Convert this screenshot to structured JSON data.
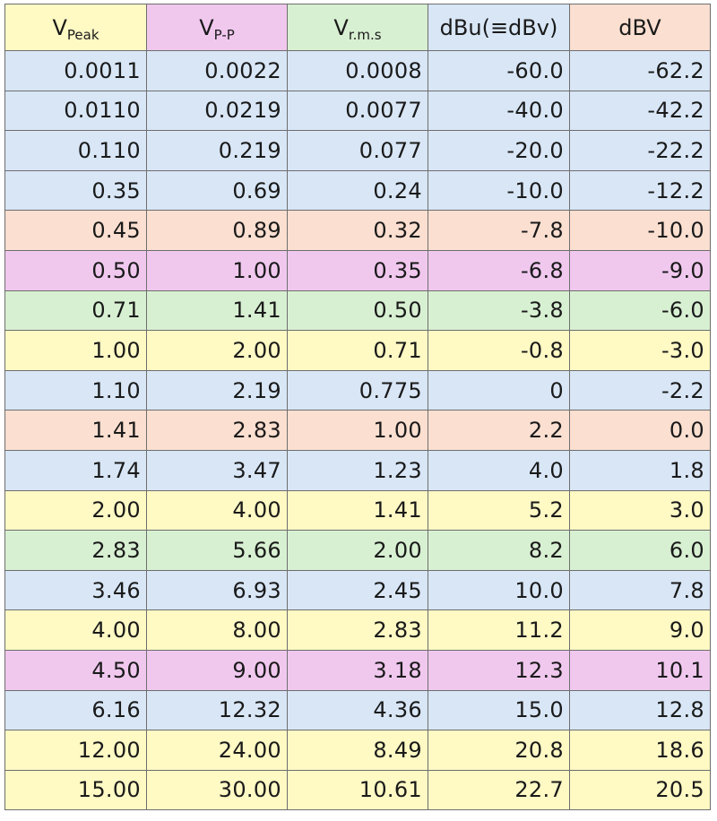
{
  "colors": {
    "yellow": "#fff9c4",
    "pink": "#f0c8ee",
    "green": "#d8f0d2",
    "blue": "#d8e6f6",
    "salmon": "#fbdfd0",
    "border": "#6e6e6e"
  },
  "table": {
    "headers": [
      {
        "main": "V",
        "sub": "Peak",
        "color": "#fff9c4"
      },
      {
        "main": "V",
        "sub": "P-P",
        "color": "#f0c8ee"
      },
      {
        "main": "V",
        "sub": "r.m.s",
        "color": "#d8f0d2"
      },
      {
        "main": "dBu(≡dBv)",
        "sub": "",
        "color": "#d8e6f6"
      },
      {
        "main": "dBV",
        "sub": "",
        "color": "#fbdfd0"
      }
    ],
    "rows": [
      {
        "color": "#d8e6f6",
        "cells": [
          "0.0011",
          "0.0022",
          "0.0008",
          "-60.0",
          "-62.2"
        ]
      },
      {
        "color": "#d8e6f6",
        "cells": [
          "0.0110",
          "0.0219",
          "0.0077",
          "-40.0",
          "-42.2"
        ]
      },
      {
        "color": "#d8e6f6",
        "cells": [
          "0.110",
          "0.219",
          "0.077",
          "-20.0",
          "-22.2"
        ]
      },
      {
        "color": "#d8e6f6",
        "cells": [
          "0.35",
          "0.69",
          "0.24",
          "-10.0",
          "-12.2"
        ]
      },
      {
        "color": "#fbdfd0",
        "cells": [
          "0.45",
          "0.89",
          "0.32",
          "-7.8",
          "-10.0"
        ]
      },
      {
        "color": "#f0c8ee",
        "cells": [
          "0.50",
          "1.00",
          "0.35",
          "-6.8",
          "-9.0"
        ]
      },
      {
        "color": "#d8f0d2",
        "cells": [
          "0.71",
          "1.41",
          "0.50",
          "-3.8",
          "-6.0"
        ]
      },
      {
        "color": "#fff9c4",
        "cells": [
          "1.00",
          "2.00",
          "0.71",
          "-0.8",
          "-3.0"
        ]
      },
      {
        "color": "#d8e6f6",
        "cells": [
          "1.10",
          "2.19",
          "0.775",
          "0",
          "-2.2"
        ]
      },
      {
        "color": "#fbdfd0",
        "cells": [
          "1.41",
          "2.83",
          "1.00",
          "2.2",
          "0.0"
        ]
      },
      {
        "color": "#d8e6f6",
        "cells": [
          "1.74",
          "3.47",
          "1.23",
          "4.0",
          "1.8"
        ]
      },
      {
        "color": "#fff9c4",
        "cells": [
          "2.00",
          "4.00",
          "1.41",
          "5.2",
          "3.0"
        ]
      },
      {
        "color": "#d8f0d2",
        "cells": [
          "2.83",
          "5.66",
          "2.00",
          "8.2",
          "6.0"
        ]
      },
      {
        "color": "#d8e6f6",
        "cells": [
          "3.46",
          "6.93",
          "2.45",
          "10.0",
          "7.8"
        ]
      },
      {
        "color": "#fff9c4",
        "cells": [
          "4.00",
          "8.00",
          "2.83",
          "11.2",
          "9.0"
        ]
      },
      {
        "color": "#f0c8ee",
        "cells": [
          "4.50",
          "9.00",
          "3.18",
          "12.3",
          "10.1"
        ]
      },
      {
        "color": "#d8e6f6",
        "cells": [
          "6.16",
          "12.32",
          "4.36",
          "15.0",
          "12.8"
        ]
      },
      {
        "color": "#fff9c4",
        "cells": [
          "12.00",
          "24.00",
          "8.49",
          "20.8",
          "18.6"
        ]
      },
      {
        "color": "#fff9c4",
        "cells": [
          "15.00",
          "30.00",
          "10.61",
          "22.7",
          "20.5"
        ]
      }
    ]
  }
}
